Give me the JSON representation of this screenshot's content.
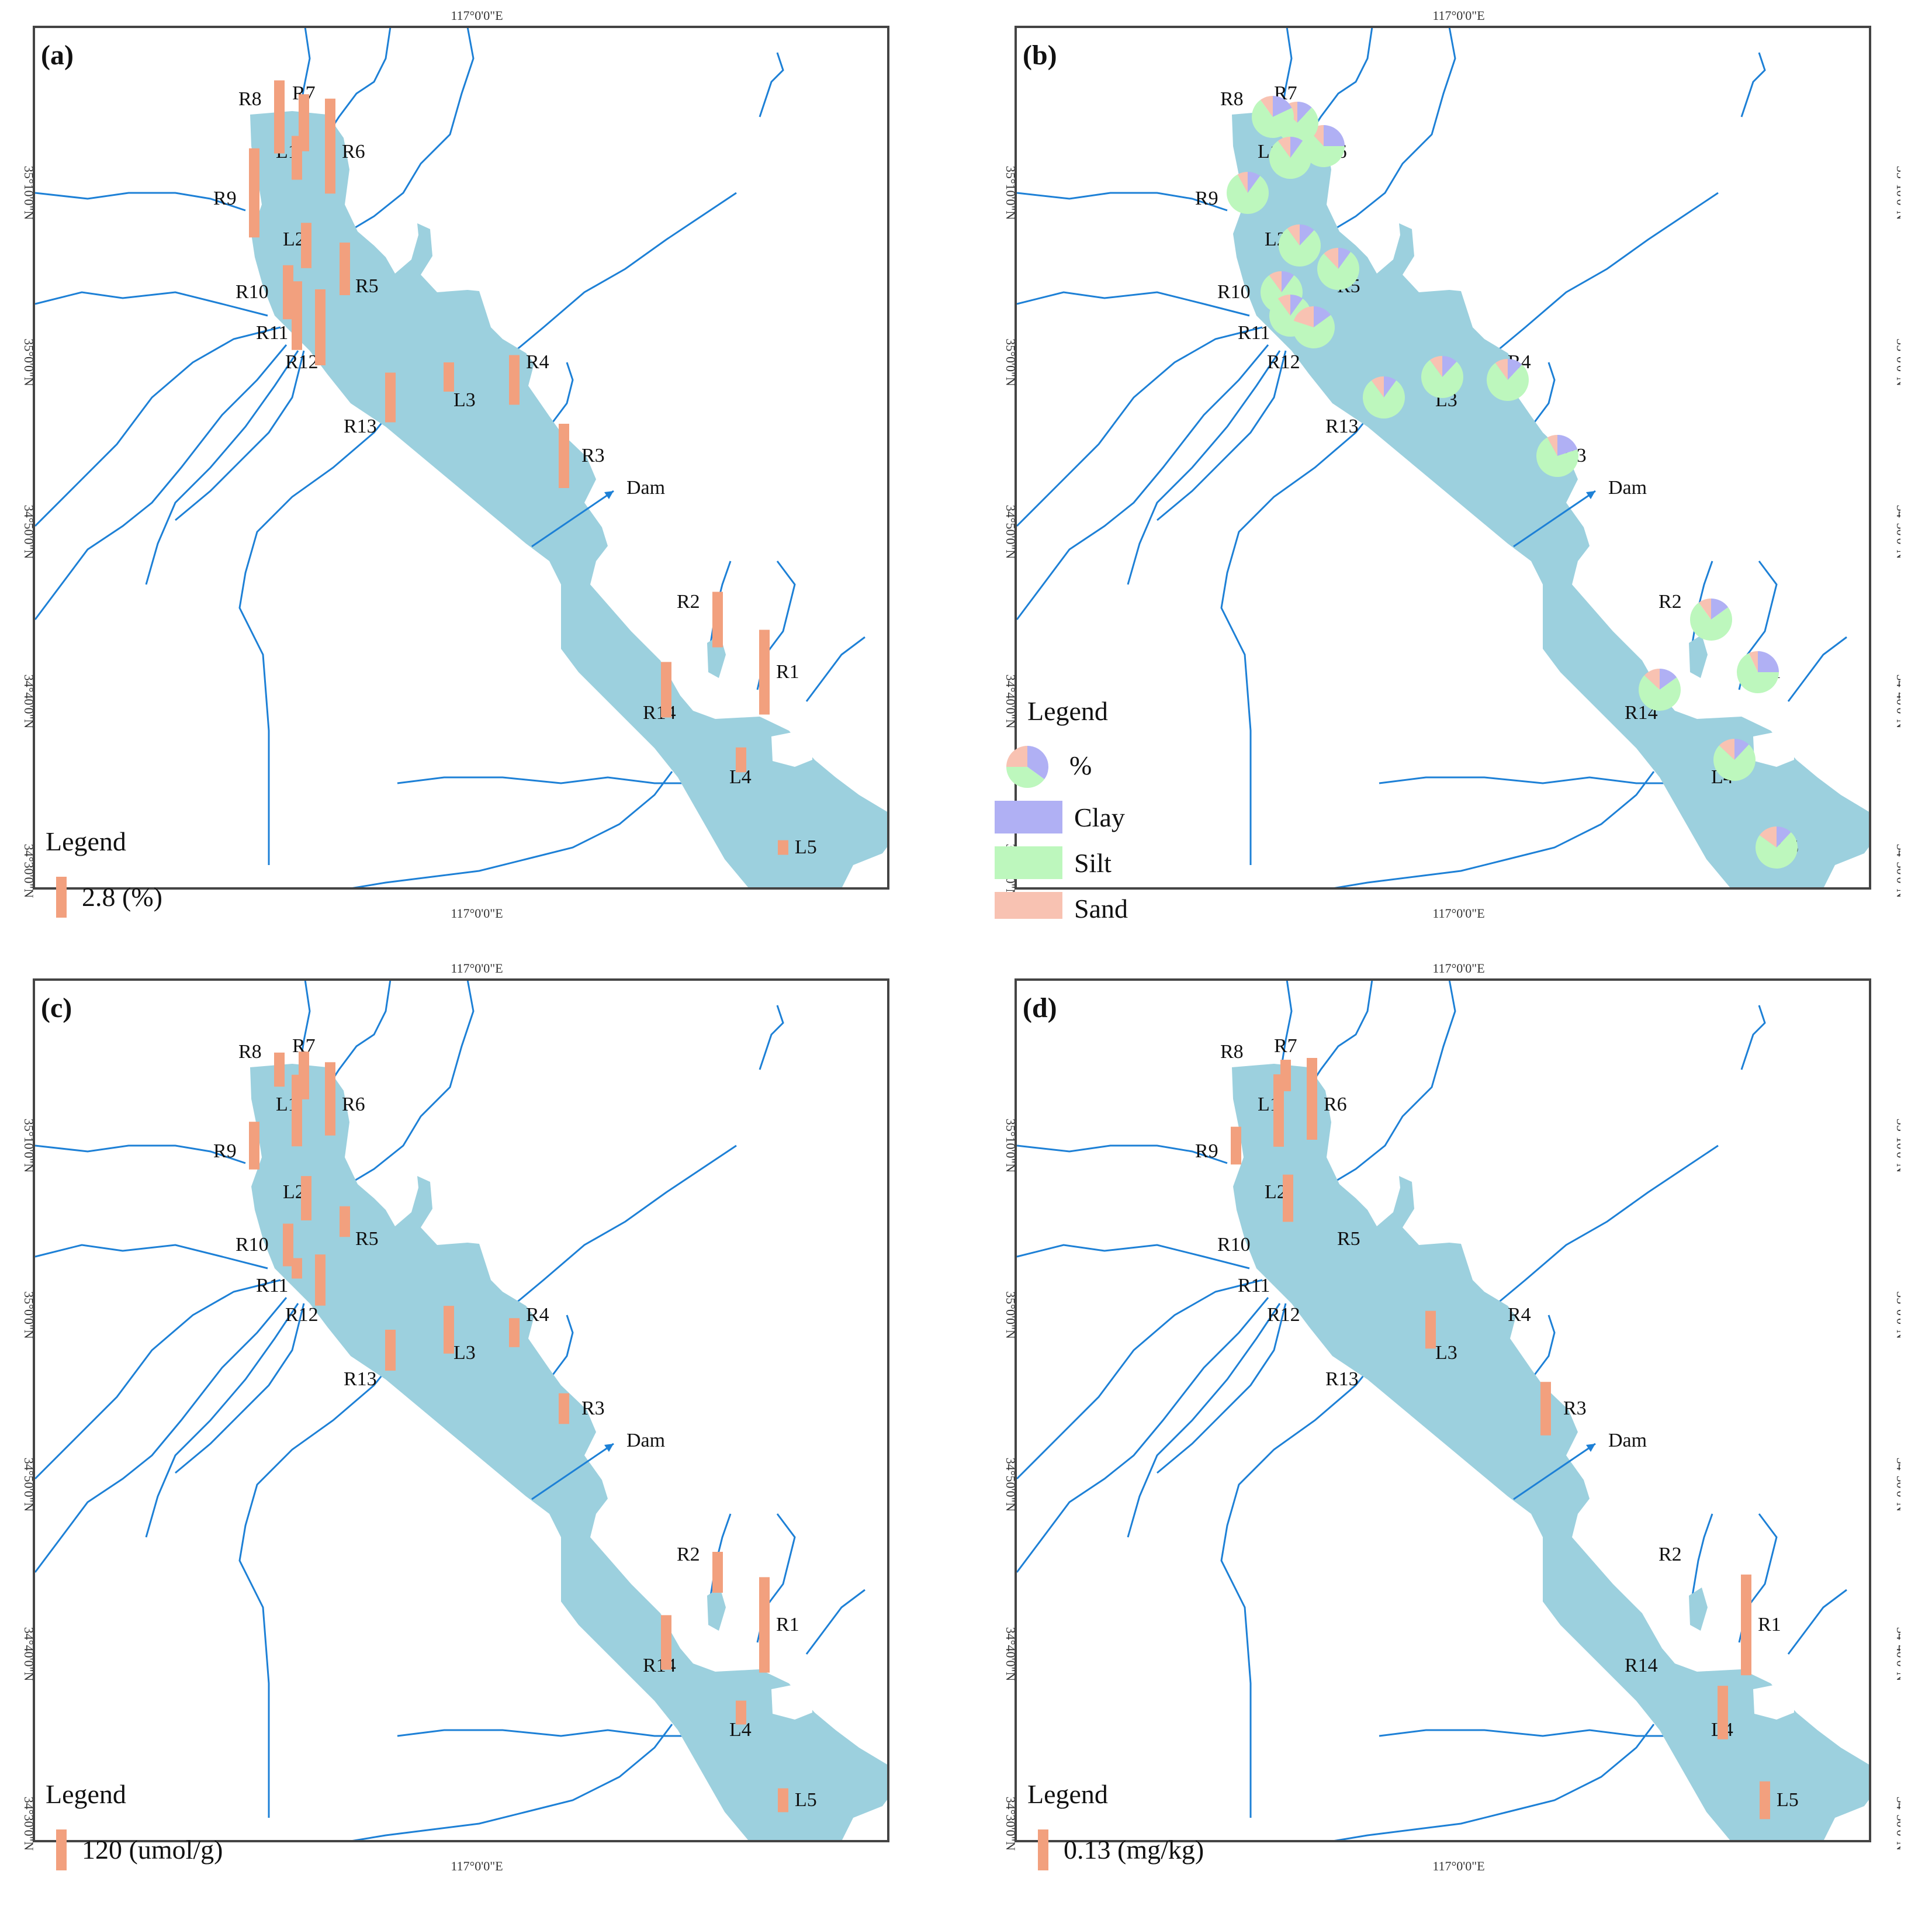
{
  "longitude_label": "117°0'0\"E",
  "latitudes": [
    "35°10'0\"N",
    "35°0'0\"N",
    "34°50'0\"N",
    "34°40'0\"N",
    "34°30'0\"N"
  ],
  "dam_label": "Dam",
  "colors": {
    "lake": "#9cd0de",
    "river": "#1d80d6",
    "bar": "#f2a07e",
    "clay": "#b0b0f4",
    "silt": "#bdf7bd",
    "sand": "#f8c2b2"
  },
  "sites": [
    "R1",
    "R2",
    "R3",
    "R4",
    "R5",
    "R6",
    "R7",
    "R8",
    "R9",
    "R10",
    "R11",
    "R12",
    "R13",
    "R14",
    "L1",
    "L2",
    "L3",
    "L4",
    "L5"
  ],
  "panels": [
    {
      "label": "(a)",
      "legend_title": "Legend",
      "legend_unit": "2.8 (%)",
      "bars": [
        {
          "site": "R1",
          "value": 5.8
        },
        {
          "site": "R2",
          "value": 3.8
        },
        {
          "site": "R3",
          "value": 4.4
        },
        {
          "site": "R4",
          "value": 3.4
        },
        {
          "site": "R5",
          "value": 3.6
        },
        {
          "site": "R6",
          "value": 6.5
        },
        {
          "site": "R7",
          "value": 3.9
        },
        {
          "site": "R8",
          "value": 5.0
        },
        {
          "site": "R9",
          "value": 6.1
        },
        {
          "site": "R10",
          "value": 3.7
        },
        {
          "site": "R11",
          "value": 4.7
        },
        {
          "site": "R12",
          "value": 5.2
        },
        {
          "site": "R13",
          "value": 3.4
        },
        {
          "site": "R14",
          "value": 3.8
        },
        {
          "site": "L1",
          "value": 3.0
        },
        {
          "site": "L2",
          "value": 3.1
        },
        {
          "site": "L3",
          "value": 2.0
        },
        {
          "site": "L4",
          "value": 1.7
        },
        {
          "site": "L5",
          "value": 1.0
        }
      ]
    },
    {
      "label": "(b)",
      "legend_title": "Legend",
      "legend_unit": "%",
      "classes": [
        "Clay",
        "Silt",
        "Sand"
      ],
      "pies": [
        {
          "site": "R1",
          "clay": 25,
          "silt": 68,
          "sand": 7
        },
        {
          "site": "R2",
          "clay": 15,
          "silt": 75,
          "sand": 10
        },
        {
          "site": "R3",
          "clay": 20,
          "silt": 72,
          "sand": 8
        },
        {
          "site": "R4",
          "clay": 12,
          "silt": 78,
          "sand": 10
        },
        {
          "site": "R5",
          "clay": 10,
          "silt": 78,
          "sand": 12
        },
        {
          "site": "R6",
          "clay": 25,
          "silt": 63,
          "sand": 12
        },
        {
          "site": "R7",
          "clay": 12,
          "silt": 75,
          "sand": 13
        },
        {
          "site": "R8",
          "clay": 18,
          "silt": 72,
          "sand": 10
        },
        {
          "site": "R9",
          "clay": 10,
          "silt": 82,
          "sand": 8
        },
        {
          "site": "R10",
          "clay": 10,
          "silt": 80,
          "sand": 10
        },
        {
          "site": "R11",
          "clay": 10,
          "silt": 80,
          "sand": 10
        },
        {
          "site": "R12",
          "clay": 15,
          "silt": 65,
          "sand": 20
        },
        {
          "site": "R13",
          "clay": 10,
          "silt": 80,
          "sand": 10
        },
        {
          "site": "R14",
          "clay": 15,
          "silt": 72,
          "sand": 13
        },
        {
          "site": "L1",
          "clay": 10,
          "silt": 80,
          "sand": 10
        },
        {
          "site": "L2",
          "clay": 12,
          "silt": 78,
          "sand": 10
        },
        {
          "site": "L3",
          "clay": 12,
          "silt": 78,
          "sand": 10
        },
        {
          "site": "L4",
          "clay": 12,
          "silt": 75,
          "sand": 13
        },
        {
          "site": "L5",
          "clay": 12,
          "silt": 73,
          "sand": 15
        }
      ]
    },
    {
      "label": "(c)",
      "legend_title": "Legend",
      "legend_unit": "120 (umol/g)",
      "bars": [
        {
          "site": "R1",
          "value": 280
        },
        {
          "site": "R2",
          "value": 120
        },
        {
          "site": "R3",
          "value": 90
        },
        {
          "site": "R4",
          "value": 85
        },
        {
          "site": "R5",
          "value": 90
        },
        {
          "site": "R6",
          "value": 215
        },
        {
          "site": "R7",
          "value": 140
        },
        {
          "site": "R8",
          "value": 100
        },
        {
          "site": "R9",
          "value": 140
        },
        {
          "site": "R10",
          "value": 125
        },
        {
          "site": "R11",
          "value": 60
        },
        {
          "site": "R12",
          "value": 150
        },
        {
          "site": "R13",
          "value": 120
        },
        {
          "site": "R14",
          "value": 160
        },
        {
          "site": "L1",
          "value": 210
        },
        {
          "site": "L2",
          "value": 130
        },
        {
          "site": "L3",
          "value": 140
        },
        {
          "site": "L4",
          "value": 70
        },
        {
          "site": "L5",
          "value": 70
        }
      ]
    },
    {
      "label": "(d)",
      "legend_title": "Legend",
      "legend_unit": "0.13 (mg/kg)",
      "bars": [
        {
          "site": "R1",
          "value": 0.32
        },
        {
          "site": "R2",
          "value": 0
        },
        {
          "site": "R3",
          "value": 0.17
        },
        {
          "site": "R4",
          "value": 0
        },
        {
          "site": "R5",
          "value": 0
        },
        {
          "site": "R6",
          "value": 0.26
        },
        {
          "site": "R7",
          "value": 0.1
        },
        {
          "site": "R8",
          "value": 0
        },
        {
          "site": "R9",
          "value": 0.12
        },
        {
          "site": "R10",
          "value": 0
        },
        {
          "site": "R11",
          "value": 0
        },
        {
          "site": "R12",
          "value": 0
        },
        {
          "site": "R13",
          "value": 0
        },
        {
          "site": "R14",
          "value": 0
        },
        {
          "site": "L1",
          "value": 0.23
        },
        {
          "site": "L2",
          "value": 0.15
        },
        {
          "site": "L3",
          "value": 0.12
        },
        {
          "site": "L4",
          "value": 0.17
        },
        {
          "site": "L5",
          "value": 0.12
        }
      ]
    }
  ]
}
